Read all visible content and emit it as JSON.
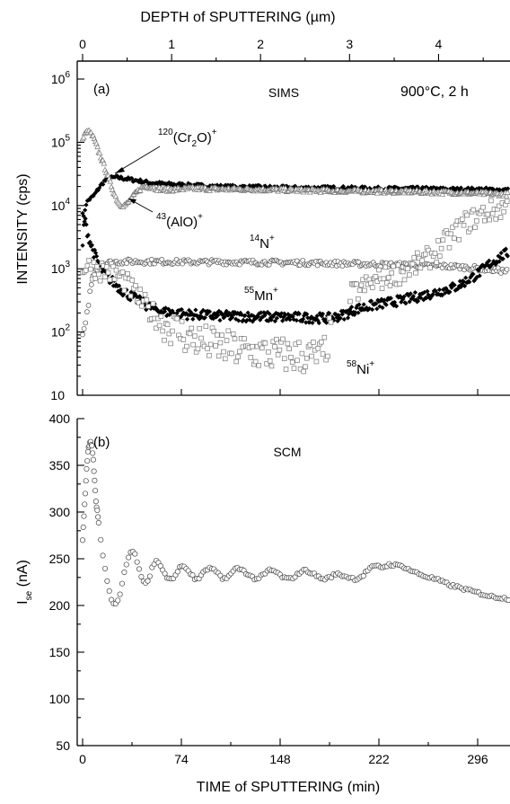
{
  "chart_data": [
    {
      "type": "scatter",
      "panel_label": "(a)",
      "method_label": "SIMS",
      "condition_label": "900°C, 2 h",
      "top_axis": {
        "label": "DEPTH of SPUTTERING (µm)",
        "label_parts": [
          "DEPTH of SPUTTERING (",
          "µ",
          "m)"
        ],
        "ticks": [
          "0",
          "1",
          "2",
          "3",
          "4"
        ],
        "tick_positions_min": [
          0,
          66.7,
          133.3,
          200,
          266.7
        ]
      },
      "ylabel": "INTENSITY (cps)",
      "yscale": "log",
      "ylim": [
        10,
        1000000
      ],
      "yticks": [
        {
          "base": "10",
          "exp": "6",
          "value": 1000000
        },
        {
          "base": "10",
          "exp": "5",
          "value": 100000
        },
        {
          "base": "10",
          "exp": "4",
          "value": 10000
        },
        {
          "base": "10",
          "exp": "3",
          "value": 1000
        },
        {
          "base": "10",
          "exp": "2",
          "value": 100
        },
        {
          "base": "10",
          "exp": "",
          "value": 10
        }
      ],
      "xlim": [
        -4,
        322
      ],
      "series": [
        {
          "name": "(Cr2O)+",
          "label_parts": {
            "pre": "120",
            "main": "(Cr",
            "sub": "2",
            "post": "O)",
            "sup": "+"
          },
          "marker": "filled-diamond",
          "x": [
            0,
            2,
            4,
            6,
            8,
            10,
            13,
            16,
            20,
            25,
            30,
            40,
            50,
            60,
            80,
            100,
            130,
            160,
            190,
            220,
            250,
            280,
            300,
            320
          ],
          "y": [
            2500,
            10000,
            12000,
            13000,
            14000,
            16000,
            20000,
            24000,
            27000,
            28000,
            27000,
            25000,
            23000,
            22000,
            21000,
            20000,
            19500,
            19000,
            19000,
            18500,
            18500,
            18000,
            18000,
            17500
          ]
        },
        {
          "name": "(AlO)+",
          "label_parts": {
            "pre": "43",
            "main": "(AlO)",
            "sup": "+"
          },
          "marker": "open-triangle",
          "x": [
            0,
            2,
            4,
            6,
            8,
            10,
            12,
            15,
            18,
            21,
            24,
            27,
            30,
            33,
            36,
            40,
            44,
            48,
            52,
            56,
            60,
            65,
            70,
            80,
            90,
            100,
            130,
            160,
            190,
            220,
            250,
            280,
            300,
            320
          ],
          "y": [
            110000,
            140000,
            150000,
            140000,
            120000,
            95000,
            72000,
            50000,
            33000,
            22000,
            15000,
            11000,
            10000,
            10500,
            12500,
            16000,
            19000,
            20000,
            19500,
            18500,
            18000,
            17800,
            18000,
            18500,
            18500,
            18200,
            18000,
            17500,
            17000,
            16800,
            16500,
            16000,
            15500,
            15000
          ]
        },
        {
          "name": "N+",
          "label_parts": {
            "pre": "14",
            "main": "N",
            "sup": "+"
          },
          "marker": "open-circle",
          "x": [
            0,
            2,
            4,
            6,
            8,
            10,
            14,
            20,
            30,
            50,
            80,
            120,
            160,
            200,
            240,
            280,
            300,
            320
          ],
          "y": [
            90,
            120,
            250,
            500,
            800,
            1000,
            1150,
            1250,
            1300,
            1300,
            1280,
            1270,
            1250,
            1200,
            1150,
            1080,
            1000,
            900
          ]
        },
        {
          "name": "Mn+",
          "label_parts": {
            "pre": "55",
            "main": "Mn",
            "sup": "+"
          },
          "marker": "filled-diamond",
          "x": [
            0,
            2,
            4,
            6,
            8,
            10,
            14,
            20,
            30,
            40,
            50,
            60,
            80,
            100,
            130,
            160,
            185,
            195,
            205,
            220,
            240,
            260,
            280,
            295,
            305,
            322
          ],
          "y": [
            7000,
            5500,
            3500,
            2500,
            1900,
            1500,
            1000,
            700,
            450,
            330,
            250,
            210,
            190,
            180,
            175,
            170,
            165,
            185,
            230,
            270,
            320,
            400,
            520,
            800,
            1200,
            2000
          ]
        },
        {
          "name": "Ni+",
          "label_parts": {
            "pre": "58",
            "main": "Ni",
            "sup": "+"
          },
          "marker": "open-square",
          "x": [
            0,
            10,
            20,
            30,
            40,
            50,
            60,
            70,
            80,
            100,
            120,
            140,
            160,
            180,
            188,
            192,
            200,
            210,
            220,
            240,
            260,
            275,
            285,
            300,
            322
          ],
          "y": [
            1100,
            1000,
            900,
            700,
            380,
            220,
            140,
            110,
            80,
            60,
            50,
            45,
            42,
            40,
            150,
            280,
            380,
            500,
            650,
            900,
            1500,
            3000,
            5000,
            7500,
            10000
          ]
        }
      ]
    },
    {
      "type": "scatter",
      "panel_label": "(b)",
      "method_label": "SCM",
      "ylabel": "I_se (nA)",
      "ylabel_parts": {
        "main": "I",
        "sub": "se",
        "post": " (nA)"
      },
      "xlabel": "TIME of SPUTTERING (min)",
      "xlim": [
        -4,
        322
      ],
      "ylim": [
        50,
        400
      ],
      "xticks": [
        0,
        74,
        148,
        222,
        296
      ],
      "yticks": [
        50,
        100,
        150,
        200,
        250,
        300,
        350,
        400
      ],
      "series": [
        {
          "name": "I_se",
          "marker": "open-circle",
          "x": [
            0,
            1,
            2,
            3,
            4,
            5,
            6,
            7,
            8,
            9,
            10,
            12,
            14,
            16,
            18,
            20,
            22,
            24,
            26,
            28,
            30,
            32,
            34,
            36,
            38,
            40,
            42,
            44,
            46,
            48,
            50,
            52,
            54,
            56,
            58,
            60,
            64,
            68,
            72,
            76,
            80,
            84,
            88,
            92,
            96,
            100,
            105,
            110,
            115,
            120,
            125,
            130,
            135,
            140,
            145,
            150,
            155,
            160,
            165,
            170,
            175,
            180,
            185,
            190,
            195,
            200,
            205,
            210,
            215,
            220,
            225,
            230,
            235,
            240,
            245,
            250,
            255,
            260,
            265,
            270,
            275,
            280,
            285,
            290,
            295,
            300,
            305,
            310,
            315,
            320
          ],
          "y": [
            270,
            295,
            320,
            345,
            365,
            372,
            375,
            370,
            355,
            335,
            312,
            290,
            265,
            245,
            228,
            215,
            205,
            200,
            202,
            212,
            228,
            240,
            250,
            257,
            258,
            252,
            242,
            232,
            225,
            224,
            230,
            240,
            246,
            248,
            244,
            238,
            228,
            228,
            240,
            242,
            236,
            228,
            230,
            238,
            240,
            236,
            228,
            232,
            240,
            238,
            232,
            228,
            232,
            238,
            236,
            230,
            228,
            232,
            238,
            236,
            232,
            228,
            230,
            234,
            232,
            230,
            228,
            232,
            240,
            242,
            241,
            244,
            243,
            242,
            238,
            235,
            232,
            230,
            228,
            225,
            222,
            220,
            218,
            216,
            214,
            212,
            210,
            209,
            208,
            207
          ]
        }
      ]
    }
  ]
}
